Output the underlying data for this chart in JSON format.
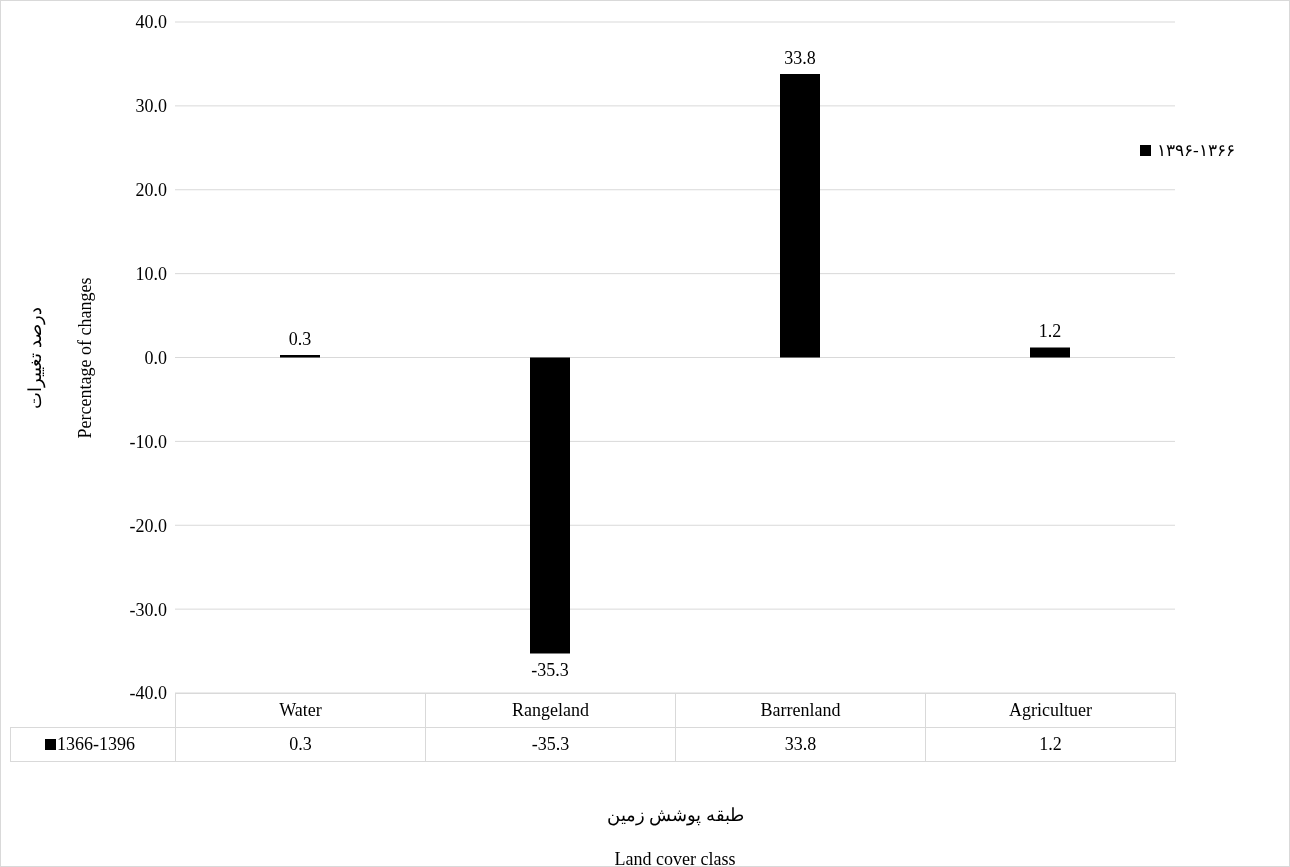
{
  "chart_data": {
    "type": "bar",
    "categories": [
      "Water",
      "Rangeland",
      "Barrenland",
      "Agricultuer"
    ],
    "series": [
      {
        "name": "۱۳۹۶-۱۳۶۶",
        "color": "#000000",
        "values": [
          0.3,
          -35.3,
          33.8,
          1.2
        ],
        "value_labels": [
          "0.3",
          "-35.3",
          "33.8",
          "1.2"
        ]
      }
    ],
    "ylim": [
      -40,
      40
    ],
    "yticks": [
      {
        "value": -40,
        "label": "-40.0"
      },
      {
        "value": -30,
        "label": "-30.0"
      },
      {
        "value": -20,
        "label": "-20.0"
      },
      {
        "value": -10,
        "label": "-10.0"
      },
      {
        "value": 0,
        "label": "0.0"
      },
      {
        "value": 10,
        "label": "10.0"
      },
      {
        "value": 20,
        "label": "20.0"
      },
      {
        "value": 30,
        "label": "30.0"
      },
      {
        "value": 40,
        "label": "40.0"
      }
    ],
    "ylabel": "درصد تغییرات\nPercentage of changes",
    "xlabel": "طبقه پوشش زمین\nLand cover class",
    "annotations": [
      "1366-1396",
      "0.3",
      "-35.3",
      "33.8",
      "1.2"
    ],
    "grid": "y",
    "legend": "right"
  }
}
